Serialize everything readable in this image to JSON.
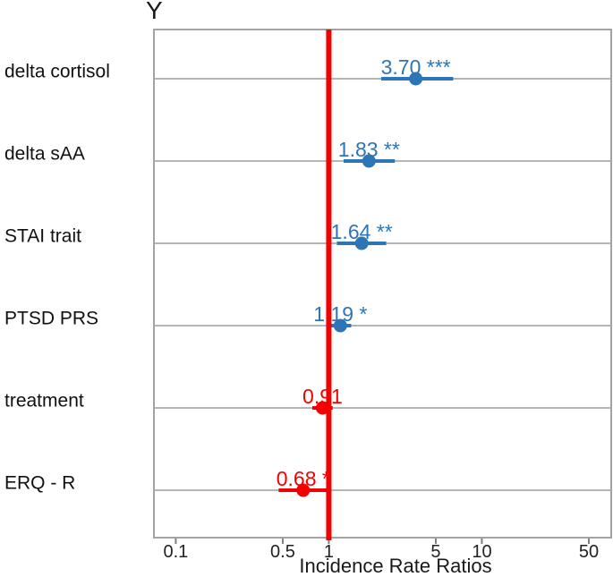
{
  "chart_data": {
    "type": "forest",
    "title": "Y",
    "xlabel": "Incidence Rate Ratios",
    "x_scale": "log10",
    "x_range": [
      0.072,
      70
    ],
    "grid": "horizontal",
    "reference_line": 1,
    "x_ticks": [
      {
        "value": 0.1,
        "label": "0.1"
      },
      {
        "value": 0.5,
        "label": "0.5"
      },
      {
        "value": 1,
        "label": "1"
      },
      {
        "value": 5,
        "label": "5"
      },
      {
        "value": 10,
        "label": "10"
      },
      {
        "value": 50,
        "label": "50"
      }
    ],
    "rows": [
      {
        "category": "delta cortisol",
        "value": 3.7,
        "value_label": "3.70",
        "ci_low": 2.2,
        "ci_high": 6.5,
        "significance": "***",
        "color_key": "blue"
      },
      {
        "category": "delta sAA",
        "value": 1.83,
        "value_label": "1.83",
        "ci_low": 1.25,
        "ci_high": 2.7,
        "significance": "**",
        "color_key": "blue"
      },
      {
        "category": "STAI trait",
        "value": 1.64,
        "value_label": "1.64",
        "ci_low": 1.13,
        "ci_high": 2.37,
        "significance": "**",
        "color_key": "blue"
      },
      {
        "category": "PTSD PRS",
        "value": 1.19,
        "value_label": "1.19",
        "ci_low": 0.98,
        "ci_high": 1.4,
        "significance": "*",
        "color_key": "blue"
      },
      {
        "category": "treatment",
        "value": 0.91,
        "value_label": "0.91",
        "ci_low": 0.78,
        "ci_high": 1.06,
        "significance": "",
        "color_key": "red"
      },
      {
        "category": "ERQ - R",
        "value": 0.68,
        "value_label": "0.68",
        "ci_low": 0.47,
        "ci_high": 0.99,
        "significance": "*",
        "color_key": "red"
      }
    ],
    "colors": {
      "blue": "#2e75b6",
      "red": "#f40000",
      "grid": "#b5b5b5",
      "frame": "#a3a3a3",
      "text": "#1a1a1a",
      "tick_text": "#222222"
    }
  }
}
